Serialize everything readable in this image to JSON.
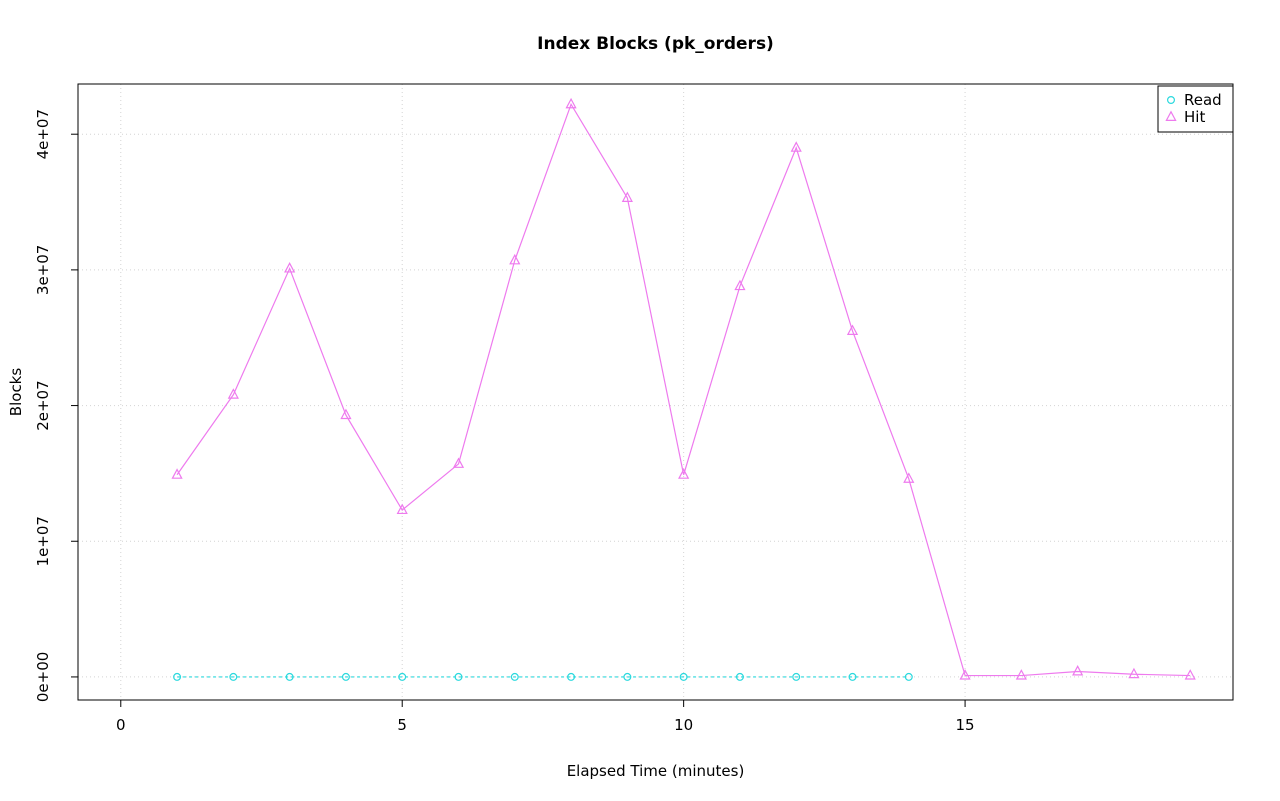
{
  "chart_data": {
    "type": "line",
    "title": "Index Blocks (pk_orders)",
    "xlabel": "Elapsed Time (minutes)",
    "ylabel": "Blocks",
    "xlim": [
      -0.76,
      19.76
    ],
    "ylim": [
      -1700000,
      43700000
    ],
    "xticks": [
      0,
      5,
      10,
      15
    ],
    "xtick_labels": [
      "0",
      "5",
      "10",
      "15"
    ],
    "yticks": [
      0,
      10000000,
      20000000,
      30000000,
      40000000
    ],
    "ytick_labels": [
      "0e+00",
      "1e+07",
      "2e+07",
      "3e+07",
      "4e+07"
    ],
    "grid": true,
    "grid_color": "#d4d4d4",
    "legend": {
      "position": "top-right",
      "entries": [
        "Read",
        "Hit"
      ]
    },
    "series": [
      {
        "name": "Read",
        "color": "#2ad9de",
        "marker": "circle",
        "line_style": "dashed",
        "x": [
          1,
          2,
          3,
          4,
          5,
          6,
          7,
          8,
          9,
          10,
          11,
          12,
          13,
          14
        ],
        "values": [
          0,
          0,
          0,
          0,
          0,
          0,
          0,
          0,
          0,
          0,
          0,
          0,
          0,
          0
        ]
      },
      {
        "name": "Hit",
        "color": "#ee7aee",
        "marker": "triangle",
        "line_style": "solid",
        "x": [
          1,
          2,
          3,
          4,
          5,
          6,
          7,
          8,
          9,
          10,
          11,
          12,
          13,
          14,
          15,
          16,
          17,
          18,
          19
        ],
        "values": [
          14900000,
          20800000,
          30100000,
          19300000,
          12300000,
          15700000,
          30700000,
          42200000,
          35300000,
          14900000,
          28800000,
          39000000,
          25500000,
          14600000,
          100000,
          100000,
          400000,
          200000,
          100000
        ]
      }
    ]
  }
}
